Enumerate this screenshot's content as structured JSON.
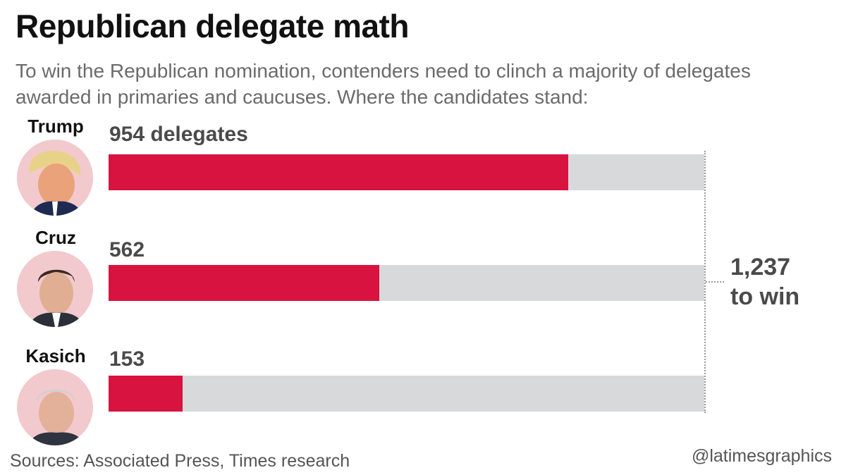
{
  "title": "Republican delegate math",
  "subtitle": "To win the Republican nomination, contenders need to clinch a majority of delegates awarded in primaries and caucuses. Where the candidates stand:",
  "threshold": {
    "value_text": "1,237",
    "label_text": "to win"
  },
  "footer": {
    "source": "Sources: Associated Press, Times research",
    "credit": "@latimesgraphics"
  },
  "colors": {
    "fill": "#d81340",
    "track": "#d8d9db",
    "avatar_bg": "#f2c9cd"
  },
  "chart_data": {
    "type": "bar",
    "orientation": "horizontal",
    "categories": [
      "Trump",
      "Cruz",
      "Kasich"
    ],
    "values": [
      954,
      562,
      153
    ],
    "value_labels": [
      "954 delegates",
      "562",
      "153"
    ],
    "target": 1237,
    "xlim": [
      0,
      1237
    ],
    "grid": false,
    "legend": "none"
  }
}
